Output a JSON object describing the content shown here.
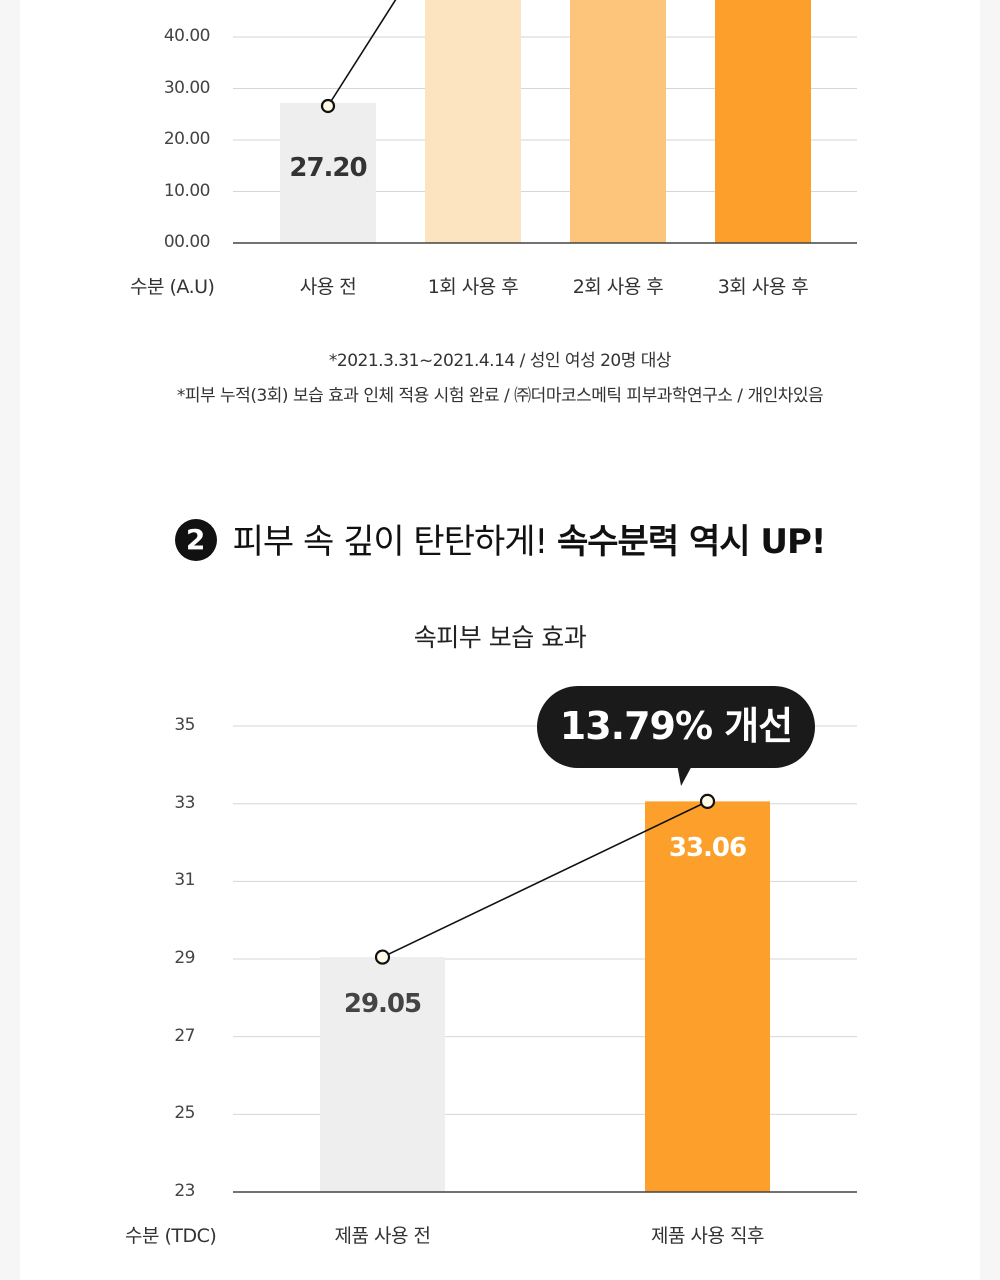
{
  "chart_data": [
    {
      "type": "bar",
      "title": "",
      "ylabel": "수분 (A.U)",
      "categories": [
        "사용 전",
        "1회 사용 후",
        "2회 사용 후",
        "3회 사용 후"
      ],
      "values": [
        27.2,
        null,
        null,
        null
      ],
      "value_labels": [
        "27.20",
        "",
        "",
        ""
      ],
      "yticks": [
        "00.00",
        "10.00",
        "20.00",
        "30.00",
        "40.00"
      ],
      "ylim": [
        0,
        47
      ],
      "grid": true,
      "colors": [
        "#eeeeee",
        "#fde4c0",
        "#fdc57c",
        "#fca02b"
      ],
      "line_overlay": true
    },
    {
      "type": "bar",
      "title": "속피부 보습 효과",
      "ylabel": "수분 (TDC)",
      "categories": [
        "제품 사용 전",
        "제품 사용 직후"
      ],
      "values": [
        29.05,
        33.06
      ],
      "value_labels": [
        "29.05",
        "33.06"
      ],
      "yticks": [
        "23",
        "25",
        "27",
        "29",
        "31",
        "33",
        "35"
      ],
      "ylim": [
        23,
        35
      ],
      "grid": true,
      "colors": [
        "#eeeeee",
        "#fca02b"
      ],
      "annotation": "13.79% 개선",
      "line_overlay": true
    }
  ],
  "notes": [
    "*2021.3.31~2021.4.14 / 성인 여성 20명 대상",
    "*피부 누적(3회) 보습 효과 인체 적용 시험 완료 / ㈜더마코스메틱 피부과학연구소 / 개인차있음"
  ],
  "section2": {
    "number": "2",
    "title_regular": "피부 속 깊이 탄탄하게!",
    "title_bold": "속수분력 역시 UP!"
  }
}
